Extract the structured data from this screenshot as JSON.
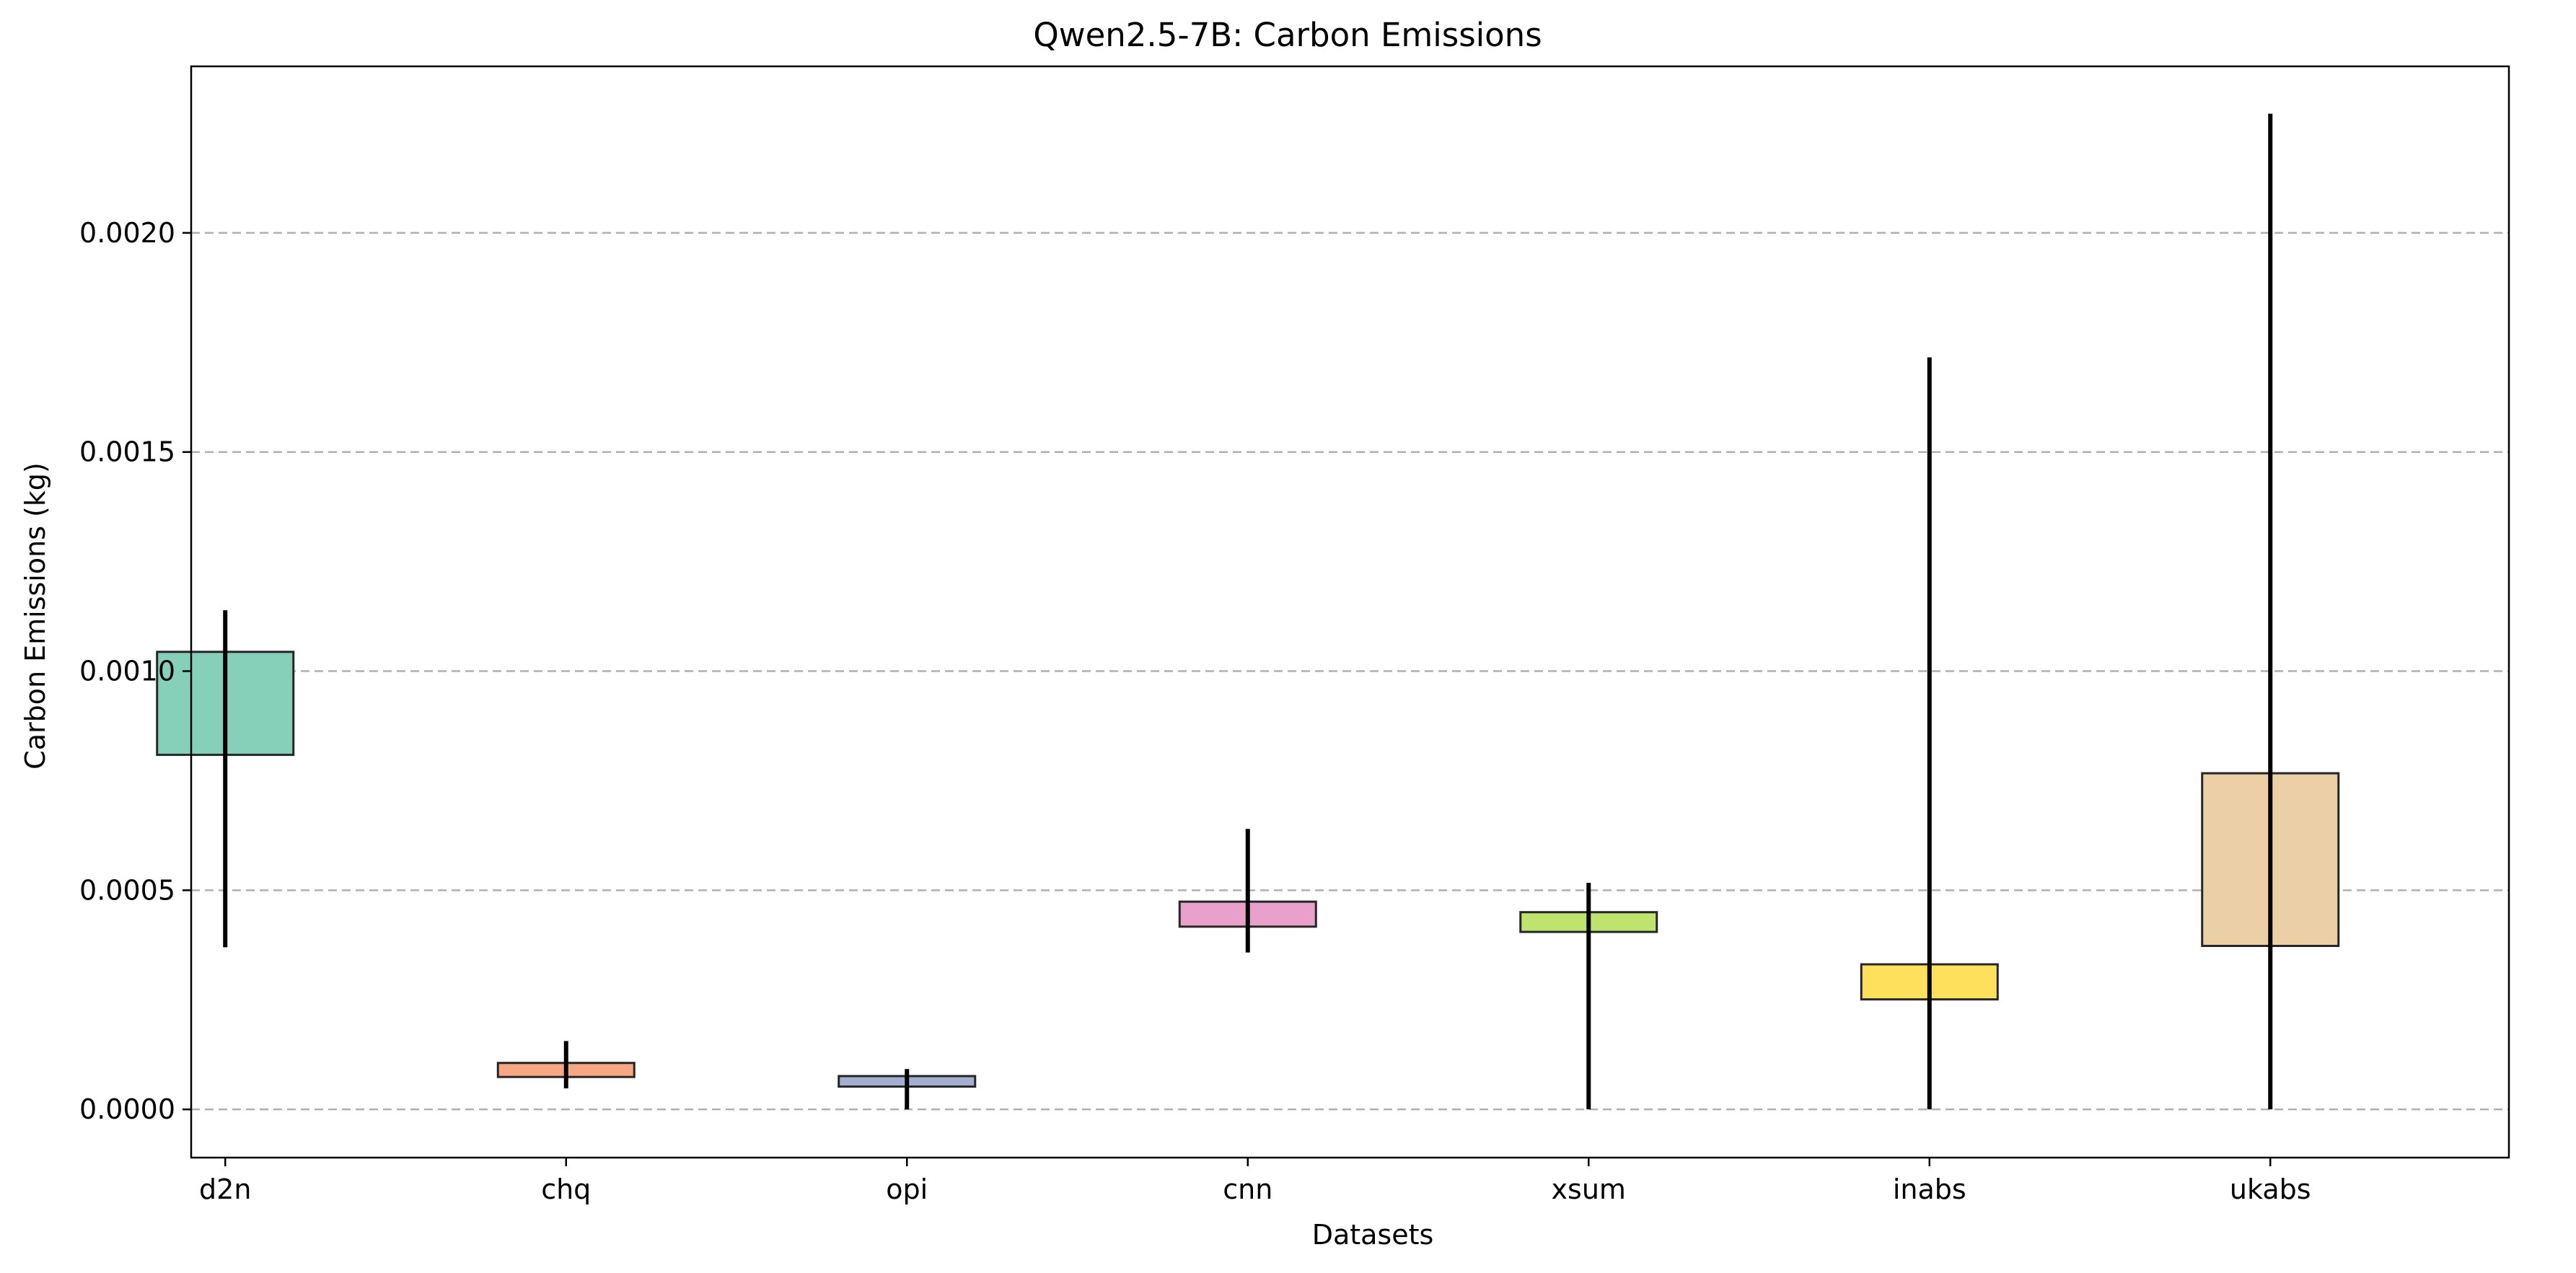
{
  "chart_data": {
    "type": "box",
    "title": "Qwen2.5-7B: Carbon Emissions",
    "xlabel": "Datasets",
    "ylabel": "Carbon Emissions (kg)",
    "ylim": [
      -0.00011,
      0.00238
    ],
    "yticks": [
      0.0,
      0.0005,
      0.001,
      0.0015,
      0.002
    ],
    "ytick_labels": [
      "0.0000",
      "0.0005",
      "0.0010",
      "0.0015",
      "0.0020"
    ],
    "grid": "y-dashed",
    "categories": [
      "d2n",
      "chq",
      "opi",
      "cnn",
      "xsum",
      "inabs",
      "ukabs"
    ],
    "series": [
      {
        "category": "d2n",
        "whisker_low": 0.00037,
        "q1": 0.000809,
        "q3": 0.001044,
        "whisker_high": 0.001139,
        "color": "#86cfb8"
      },
      {
        "category": "chq",
        "whisker_low": 4.8e-05,
        "q1": 7.4e-05,
        "q3": 0.000106,
        "whisker_high": 0.000156,
        "color": "#f7a784"
      },
      {
        "category": "opi",
        "whisker_low": 0.0,
        "q1": 5.2e-05,
        "q3": 7.6e-05,
        "whisker_high": 9.2e-05,
        "color": "#a3aed0"
      },
      {
        "category": "cnn",
        "whisker_low": 0.000358,
        "q1": 0.000417,
        "q3": 0.000474,
        "whisker_high": 0.00064,
        "color": "#e9a0cb"
      },
      {
        "category": "xsum",
        "whisker_low": 0.0,
        "q1": 0.000405,
        "q3": 0.00045,
        "whisker_high": 0.000517,
        "color": "#bee36f"
      },
      {
        "category": "inabs",
        "whisker_low": 0.0,
        "q1": 0.000251,
        "q3": 0.000331,
        "whisker_high": 0.001716,
        "color": "#ffe05c"
      },
      {
        "category": "ukabs",
        "whisker_low": 0.0,
        "q1": 0.000373,
        "q3": 0.000767,
        "whisker_high": 0.002272,
        "color": "#ebd0a7"
      }
    ]
  }
}
